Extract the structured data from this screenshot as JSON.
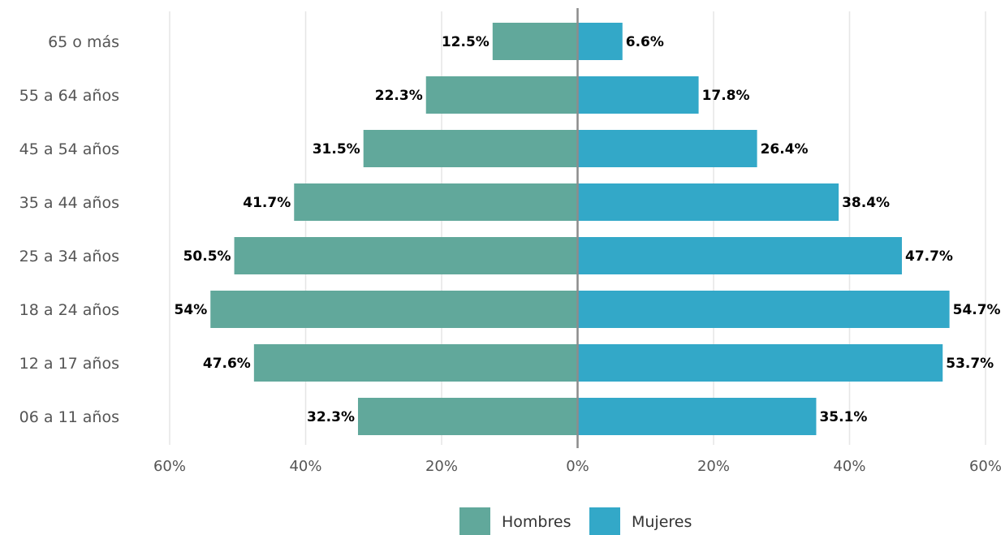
{
  "chart_data": {
    "type": "bar",
    "orientation": "horizontal",
    "layout": "population-pyramid",
    "categories": [
      "65 o más",
      "55 a 64 años",
      "45 a 54 años",
      "35 a 44 años",
      "25 a 34 años",
      "18 a 24 años",
      "12 a 17 años",
      "06 a 11 años"
    ],
    "series": [
      {
        "name": "Hombres",
        "side": "left",
        "color": "#61a89b",
        "values": [
          12.5,
          22.3,
          31.5,
          41.7,
          50.5,
          54,
          47.6,
          32.3
        ],
        "value_labels": [
          "12.5%",
          "22.3%",
          "31.5%",
          "41.7%",
          "50.5%",
          "54%",
          "47.6%",
          "32.3%"
        ]
      },
      {
        "name": "Mujeres",
        "side": "right",
        "color": "#33a8c8",
        "values": [
          6.6,
          17.8,
          26.4,
          38.4,
          47.7,
          54.7,
          53.7,
          35.1
        ],
        "value_labels": [
          "6.6%",
          "17.8%",
          "26.4%",
          "38.4%",
          "47.7%",
          "54.7%",
          "53.7%",
          "35.1%"
        ]
      }
    ],
    "xlim": [
      -60,
      60
    ],
    "x_ticks": [
      -60,
      -40,
      -20,
      0,
      20,
      40,
      60
    ],
    "x_tick_labels": [
      "60%",
      "40%",
      "20%",
      "0%",
      "20%",
      "40%",
      "60%"
    ],
    "title": "",
    "xlabel": "",
    "ylabel": "",
    "grid": "vertical",
    "legend_position": "bottom-center"
  }
}
